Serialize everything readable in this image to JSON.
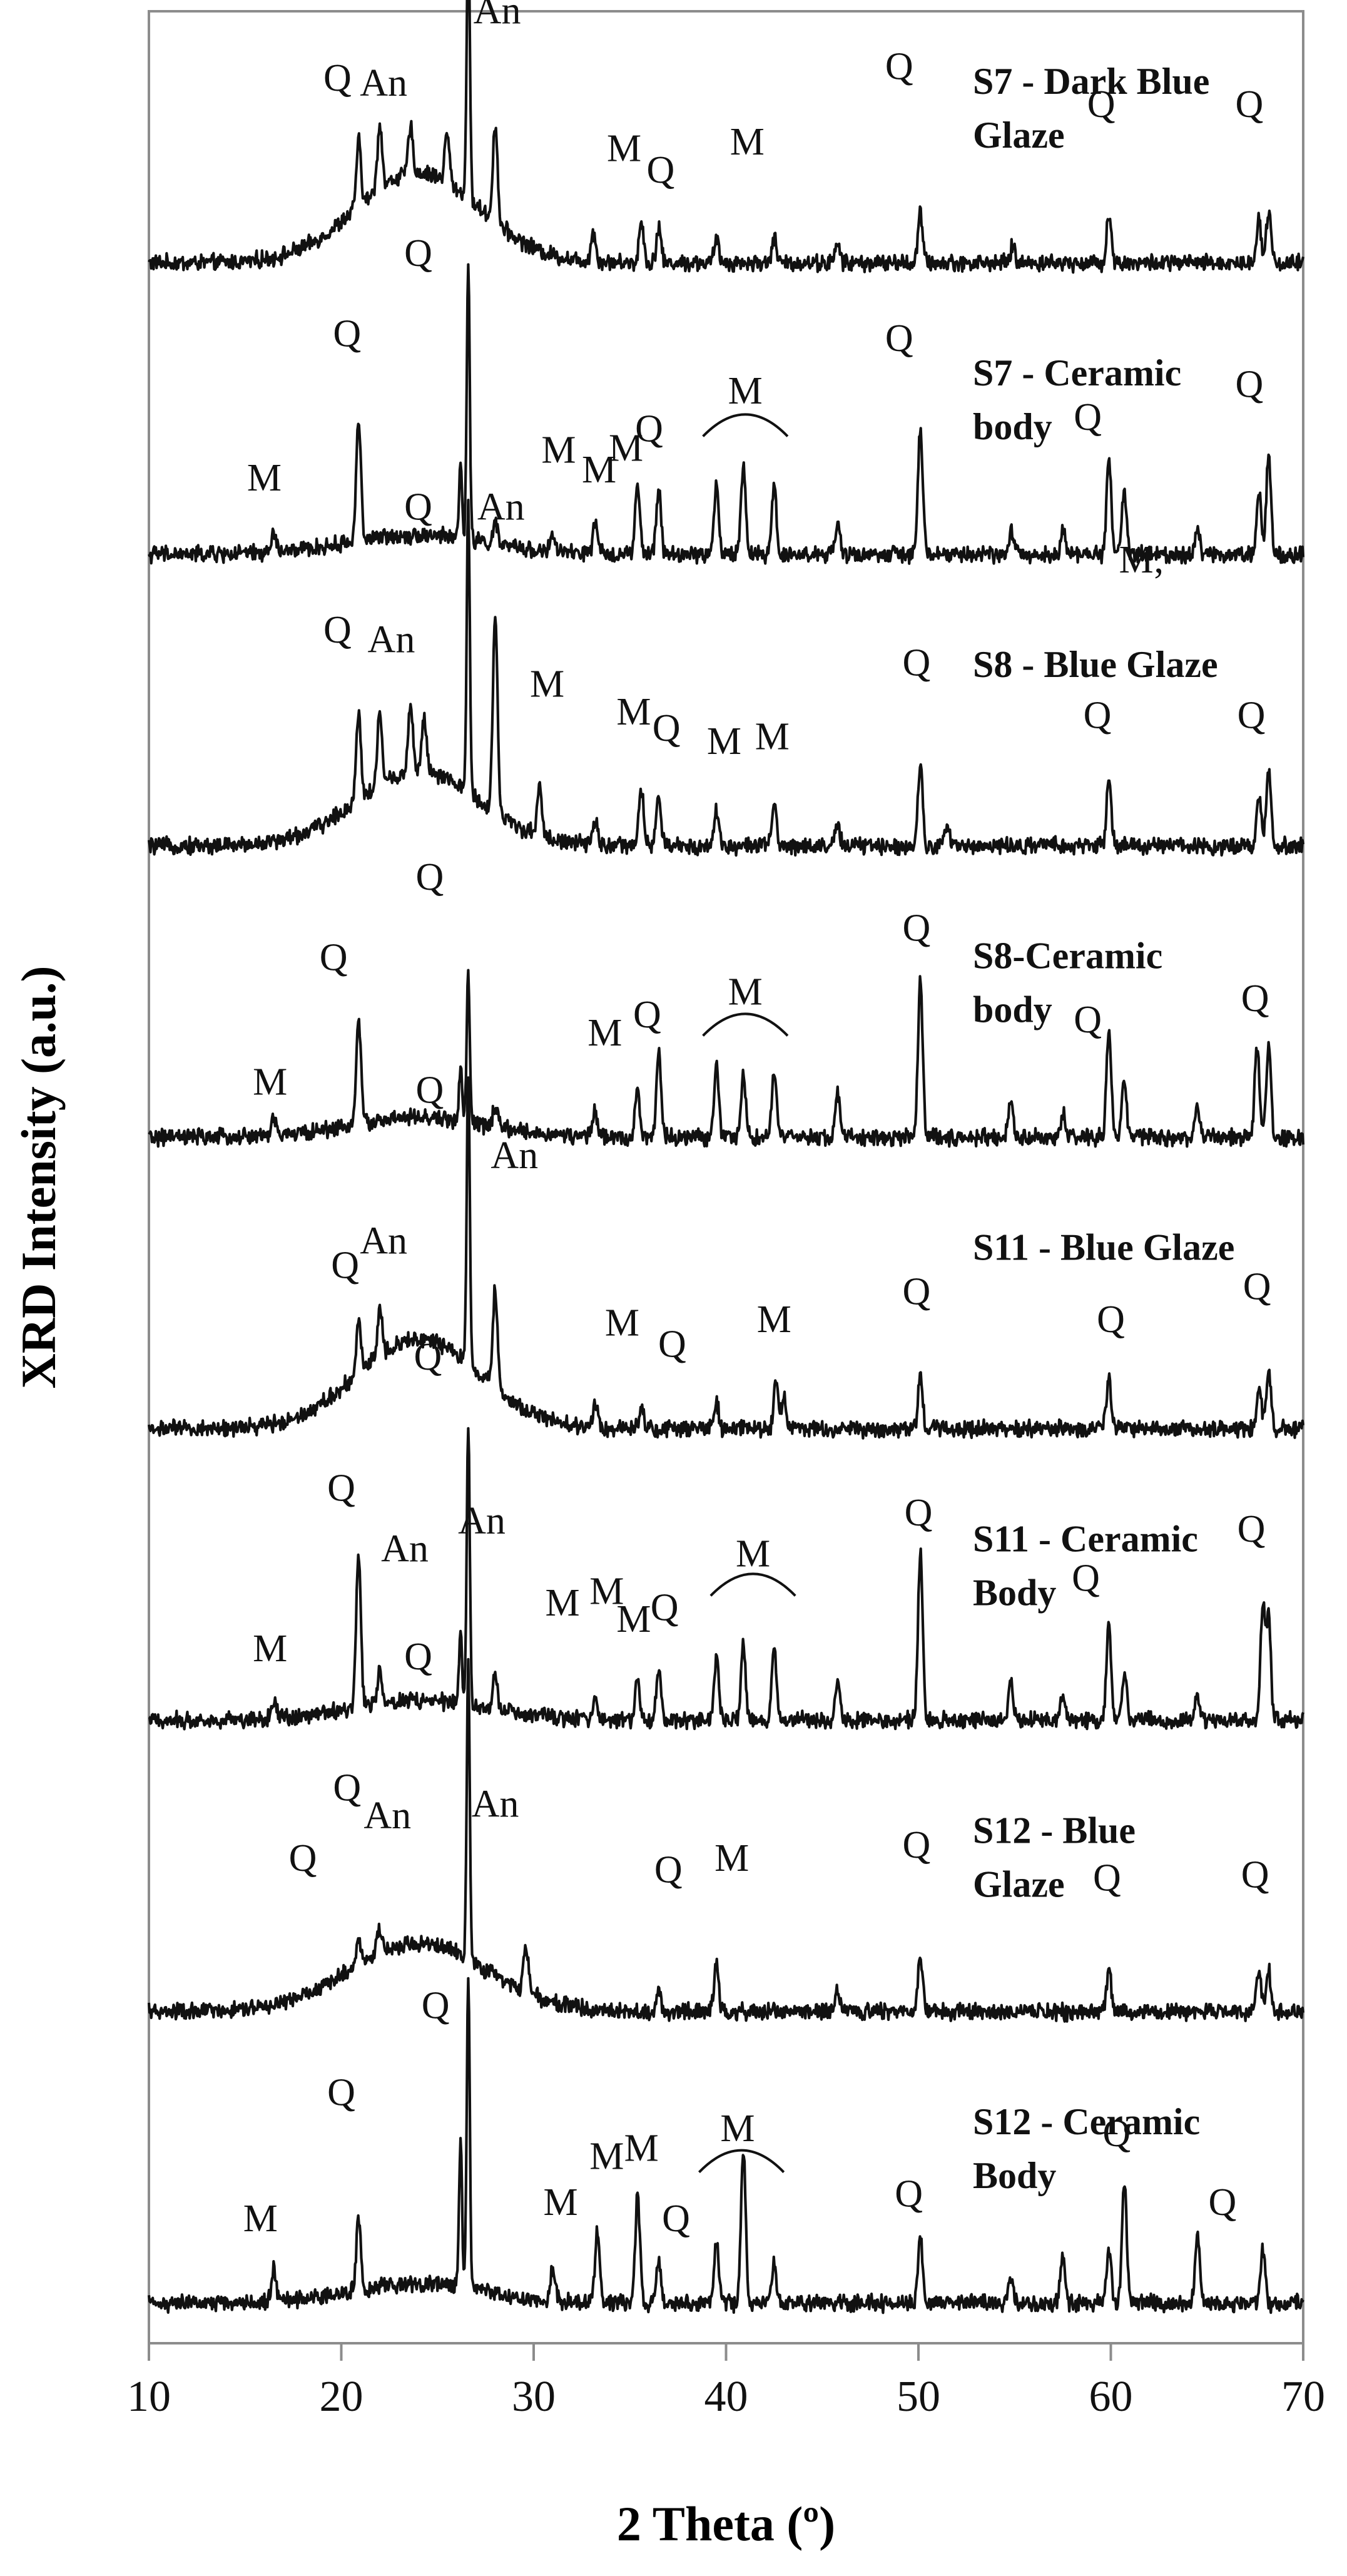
{
  "chart_data": {
    "type": "line",
    "title": "",
    "xlabel": "2 Theta (º)",
    "ylabel": "XRD Intensity (a.u.)",
    "xlim": [
      10,
      70
    ],
    "xticks": [
      10,
      20,
      30,
      40,
      50,
      60,
      70
    ],
    "grid": false,
    "legend": "none",
    "series": [
      {
        "name": "S7 - Dark Blue Glaze",
        "label_lines": [
          "S7   - Dark Blue",
          "Glaze"
        ],
        "base": 0,
        "baseline": 0.06,
        "amorphous": {
          "center": 24,
          "width": 4.5,
          "height": 0.55
        },
        "peaks": [
          [
            20.9,
            0.4
          ],
          [
            22.0,
            0.4
          ],
          [
            23.6,
            0.28
          ],
          [
            25.5,
            0.3
          ],
          [
            26.6,
            1.75
          ],
          [
            28.0,
            0.6
          ],
          [
            33.1,
            0.18
          ],
          [
            35.6,
            0.25
          ],
          [
            36.5,
            0.22
          ],
          [
            39.5,
            0.14
          ],
          [
            42.5,
            0.15
          ],
          [
            45.8,
            0.12
          ],
          [
            50.1,
            0.3
          ],
          [
            54.9,
            0.1
          ],
          [
            59.9,
            0.3
          ],
          [
            67.7,
            0.28
          ],
          [
            68.2,
            0.32
          ]
        ],
        "annotations": [
          {
            "text": "Q",
            "x": 24.0,
            "y": 1.78
          },
          {
            "text": "An",
            "x": 28.1,
            "y": 1.52
          },
          {
            "text": "Q",
            "x": 19.8,
            "y": 1.11
          },
          {
            "text": "An",
            "x": 22.2,
            "y": 1.08
          },
          {
            "text": "M",
            "x": 34.7,
            "y": 0.68
          },
          {
            "text": "Q",
            "x": 36.6,
            "y": 0.55
          },
          {
            "text": "M",
            "x": 41.1,
            "y": 0.72
          },
          {
            "text": "Q",
            "x": 49.0,
            "y": 1.18
          },
          {
            "text": "Q",
            "x": 59.5,
            "y": 0.95
          },
          {
            "text": "Q",
            "x": 67.2,
            "y": 0.95
          }
        ]
      },
      {
        "name": "S7 - Ceramic body",
        "label_lines": [
          "S7 - Ceramic",
          "body"
        ],
        "base": 1,
        "baseline": 0.06,
        "amorphous": {
          "center": 24,
          "width": 5,
          "height": 0.12
        },
        "peaks": [
          [
            16.5,
            0.12
          ],
          [
            20.9,
            0.75
          ],
          [
            26.2,
            0.45
          ],
          [
            26.6,
            1.65
          ],
          [
            28.0,
            0.12
          ],
          [
            31.0,
            0.1
          ],
          [
            33.2,
            0.18
          ],
          [
            35.4,
            0.42
          ],
          [
            36.5,
            0.4
          ],
          [
            39.5,
            0.42
          ],
          [
            40.9,
            0.55
          ],
          [
            42.5,
            0.42
          ],
          [
            45.8,
            0.18
          ],
          [
            50.1,
            0.78
          ],
          [
            54.8,
            0.15
          ],
          [
            57.5,
            0.15
          ],
          [
            59.9,
            0.6
          ],
          [
            60.7,
            0.4
          ],
          [
            64.5,
            0.18
          ],
          [
            67.7,
            0.4
          ],
          [
            68.2,
            0.6
          ]
        ],
        "annotations": [
          {
            "text": "Q",
            "x": 24.0,
            "y": 1.82
          },
          {
            "text": "Q",
            "x": 20.3,
            "y": 1.33
          },
          {
            "text": "M",
            "x": 16.0,
            "y": 0.45
          },
          {
            "text": "M",
            "x": 31.3,
            "y": 0.62
          },
          {
            "text": "M",
            "x": 33.4,
            "y": 0.5
          },
          {
            "text": "M",
            "x": 34.8,
            "y": 0.63
          },
          {
            "text": "Q",
            "x": 36.0,
            "y": 0.75
          },
          {
            "text": "M",
            "x": 41.0,
            "y": 0.98
          },
          {
            "text": "Q",
            "x": 49.0,
            "y": 1.3
          },
          {
            "text": "Q",
            "x": 58.8,
            "y": 0.82
          },
          {
            "text": "Q",
            "x": 67.2,
            "y": 1.02
          },
          {
            "text": "M;",
            "x": 61.6,
            "y": -0.05
          }
        ]
      },
      {
        "name": "S8 - Blue Glaze",
        "label_lines": [
          "S8 - Blue Glaze"
        ],
        "base": 2,
        "baseline": 0.06,
        "amorphous": {
          "center": 24,
          "width": 4.5,
          "height": 0.45
        },
        "peaks": [
          [
            20.9,
            0.55
          ],
          [
            22.0,
            0.45
          ],
          [
            23.6,
            0.42
          ],
          [
            24.3,
            0.35
          ],
          [
            26.6,
            1.8
          ],
          [
            28.0,
            1.2
          ],
          [
            30.3,
            0.32
          ],
          [
            33.2,
            0.15
          ],
          [
            35.6,
            0.35
          ],
          [
            36.5,
            0.3
          ],
          [
            39.5,
            0.22
          ],
          [
            42.5,
            0.25
          ],
          [
            45.8,
            0.12
          ],
          [
            50.1,
            0.5
          ],
          [
            51.5,
            0.12
          ],
          [
            59.9,
            0.42
          ],
          [
            67.7,
            0.3
          ],
          [
            68.2,
            0.45
          ]
        ],
        "annotations": [
          {
            "text": "Q",
            "x": 24.0,
            "y": 2.05
          },
          {
            "text": "An",
            "x": 28.3,
            "y": 2.05
          },
          {
            "text": "Q",
            "x": 19.8,
            "y": 1.3
          },
          {
            "text": "An",
            "x": 22.6,
            "y": 1.24
          },
          {
            "text": "M",
            "x": 30.7,
            "y": 0.97
          },
          {
            "text": "M",
            "x": 35.2,
            "y": 0.8
          },
          {
            "text": "Q",
            "x": 36.9,
            "y": 0.7
          },
          {
            "text": "M",
            "x": 39.9,
            "y": 0.62
          },
          {
            "text": "M",
            "x": 42.4,
            "y": 0.65
          },
          {
            "text": "Q",
            "x": 49.9,
            "y": 1.1
          },
          {
            "text": "Q",
            "x": 59.3,
            "y": 0.78
          },
          {
            "text": "Q",
            "x": 67.3,
            "y": 0.78
          }
        ]
      },
      {
        "name": "S8-Ceramic body",
        "label_lines": [
          "S8-Ceramic",
          "body"
        ],
        "base": 3,
        "baseline": 0.06,
        "amorphous": {
          "center": 24,
          "width": 5,
          "height": 0.12
        },
        "peaks": [
          [
            16.5,
            0.1
          ],
          [
            20.9,
            0.65
          ],
          [
            26.2,
            0.35
          ],
          [
            26.6,
            0.9
          ],
          [
            28.0,
            0.12
          ],
          [
            33.2,
            0.15
          ],
          [
            35.4,
            0.3
          ],
          [
            36.5,
            0.5
          ],
          [
            39.5,
            0.45
          ],
          [
            40.9,
            0.4
          ],
          [
            42.5,
            0.4
          ],
          [
            45.8,
            0.28
          ],
          [
            50.1,
            0.98
          ],
          [
            54.8,
            0.22
          ],
          [
            57.5,
            0.15
          ],
          [
            59.9,
            0.65
          ],
          [
            60.7,
            0.35
          ],
          [
            64.5,
            0.18
          ],
          [
            67.6,
            0.55
          ],
          [
            68.2,
            0.55
          ]
        ],
        "annotations": [
          {
            "text": "Q",
            "x": 24.6,
            "y": 1.57
          },
          {
            "text": "Q",
            "x": 19.6,
            "y": 1.08
          },
          {
            "text": "M",
            "x": 16.3,
            "y": 0.32
          },
          {
            "text": "M",
            "x": 33.7,
            "y": 0.62
          },
          {
            "text": "Q",
            "x": 35.9,
            "y": 0.73
          },
          {
            "text": "M",
            "x": 41.0,
            "y": 0.87
          },
          {
            "text": "Q",
            "x": 49.9,
            "y": 1.26
          },
          {
            "text": "Q",
            "x": 58.8,
            "y": 0.7
          },
          {
            "text": "Q",
            "x": 67.5,
            "y": 0.83
          }
        ]
      },
      {
        "name": "S11 - Blue Glaze",
        "label_lines": [
          "S11 - Blue Glaze"
        ],
        "base": 4,
        "baseline": 0.06,
        "amorphous": {
          "center": 24,
          "width": 4.5,
          "height": 0.55
        },
        "peaks": [
          [
            20.9,
            0.3
          ],
          [
            22.0,
            0.3
          ],
          [
            26.6,
            1.8
          ],
          [
            28.0,
            0.6
          ],
          [
            33.2,
            0.15
          ],
          [
            35.6,
            0.15
          ],
          [
            39.5,
            0.15
          ],
          [
            42.6,
            0.3
          ],
          [
            43.0,
            0.2
          ],
          [
            50.1,
            0.3
          ],
          [
            59.9,
            0.3
          ],
          [
            67.7,
            0.25
          ],
          [
            68.2,
            0.35
          ]
        ],
        "annotations": [
          {
            "text": "Q",
            "x": 24.6,
            "y": 2.05
          },
          {
            "text": "An",
            "x": 29.0,
            "y": 1.65
          },
          {
            "text": "An",
            "x": 22.2,
            "y": 1.13
          },
          {
            "text": "Q",
            "x": 20.2,
            "y": 0.98
          },
          {
            "text": "M",
            "x": 34.6,
            "y": 0.63
          },
          {
            "text": "Q",
            "x": 37.2,
            "y": 0.5
          },
          {
            "text": "M",
            "x": 42.5,
            "y": 0.65
          },
          {
            "text": "Q",
            "x": 49.9,
            "y": 0.82
          },
          {
            "text": "Q",
            "x": 60.0,
            "y": 0.65
          },
          {
            "text": "Q",
            "x": 67.6,
            "y": 0.85
          }
        ]
      },
      {
        "name": "S11 - Ceramic Body",
        "label_lines": [
          "S11 - Ceramic",
          "Body"
        ],
        "base": 5,
        "baseline": 0.06,
        "amorphous": {
          "center": 24,
          "width": 5,
          "height": 0.12
        },
        "peaks": [
          [
            16.5,
            0.12
          ],
          [
            20.9,
            0.95
          ],
          [
            22.0,
            0.2
          ],
          [
            26.2,
            0.45
          ],
          [
            26.6,
            1.7
          ],
          [
            28.0,
            0.2
          ],
          [
            33.2,
            0.15
          ],
          [
            35.4,
            0.25
          ],
          [
            36.5,
            0.3
          ],
          [
            39.5,
            0.4
          ],
          [
            40.9,
            0.45
          ],
          [
            42.5,
            0.45
          ],
          [
            45.8,
            0.25
          ],
          [
            50.1,
            1.05
          ],
          [
            54.8,
            0.25
          ],
          [
            57.5,
            0.15
          ],
          [
            59.9,
            0.6
          ],
          [
            60.7,
            0.3
          ],
          [
            64.5,
            0.15
          ],
          [
            67.9,
            0.68
          ],
          [
            68.2,
            0.6
          ]
        ],
        "annotations": [
          {
            "text": "Q",
            "x": 24.5,
            "y": 2.2
          },
          {
            "text": "Q",
            "x": 20.0,
            "y": 1.4
          },
          {
            "text": "An",
            "x": 23.3,
            "y": 1.03
          },
          {
            "text": "An",
            "x": 27.3,
            "y": 1.2
          },
          {
            "text": "M",
            "x": 16.3,
            "y": 0.42
          },
          {
            "text": "M",
            "x": 31.5,
            "y": 0.7
          },
          {
            "text": "M",
            "x": 33.8,
            "y": 0.77
          },
          {
            "text": "M",
            "x": 35.2,
            "y": 0.6
          },
          {
            "text": "Q",
            "x": 36.8,
            "y": 0.67
          },
          {
            "text": "M",
            "x": 41.4,
            "y": 1.0
          },
          {
            "text": "Q",
            "x": 50.0,
            "y": 1.25
          },
          {
            "text": "Q",
            "x": 58.7,
            "y": 0.85
          },
          {
            "text": "Q",
            "x": 67.3,
            "y": 1.15
          }
        ]
      },
      {
        "name": "S12 - Blue Glaze",
        "label_lines": [
          "S12 - Blue",
          "Glaze"
        ],
        "base": 6,
        "baseline": 0.06,
        "amorphous": {
          "center": 24,
          "width": 5,
          "height": 0.42
        },
        "peaks": [
          [
            20.9,
            0.15
          ],
          [
            22.0,
            0.15
          ],
          [
            26.6,
            1.8
          ],
          [
            29.6,
            0.3
          ],
          [
            36.5,
            0.12
          ],
          [
            39.5,
            0.3
          ],
          [
            45.8,
            0.12
          ],
          [
            50.1,
            0.35
          ],
          [
            59.9,
            0.25
          ],
          [
            67.7,
            0.25
          ],
          [
            68.2,
            0.25
          ]
        ],
        "annotations": [
          {
            "text": "Q",
            "x": 24.0,
            "y": 2.15
          },
          {
            "text": "Q",
            "x": 20.3,
            "y": 1.35
          },
          {
            "text": "An",
            "x": 22.4,
            "y": 1.18
          },
          {
            "text": "An",
            "x": 28.0,
            "y": 1.25
          },
          {
            "text": "Q",
            "x": 18.0,
            "y": 0.92
          },
          {
            "text": "Q",
            "x": 37.0,
            "y": 0.85
          },
          {
            "text": "M",
            "x": 40.3,
            "y": 0.92
          },
          {
            "text": "Q",
            "x": 49.9,
            "y": 1.0
          },
          {
            "text": "Q",
            "x": 59.8,
            "y": 0.8
          },
          {
            "text": "Q",
            "x": 67.5,
            "y": 0.82
          }
        ]
      },
      {
        "name": "S12 - Ceramic Body",
        "label_lines": [
          "S12 - Ceramic",
          "Body"
        ],
        "base": 7,
        "baseline": 0.06,
        "amorphous": {
          "center": 24,
          "width": 5,
          "height": 0.12
        },
        "peaks": [
          [
            16.5,
            0.2
          ],
          [
            20.9,
            0.42
          ],
          [
            26.2,
            0.9
          ],
          [
            26.6,
            1.9
          ],
          [
            31.0,
            0.2
          ],
          [
            33.3,
            0.42
          ],
          [
            35.4,
            0.65
          ],
          [
            36.5,
            0.28
          ],
          [
            39.5,
            0.38
          ],
          [
            40.9,
            0.95
          ],
          [
            42.5,
            0.25
          ],
          [
            50.1,
            0.4
          ],
          [
            54.8,
            0.15
          ],
          [
            57.5,
            0.3
          ],
          [
            59.9,
            0.32
          ],
          [
            60.7,
            0.75
          ],
          [
            64.5,
            0.42
          ],
          [
            67.9,
            0.32
          ]
        ],
        "annotations": [
          {
            "text": "Q",
            "x": 24.9,
            "y": 1.8
          },
          {
            "text": "Q",
            "x": 20.0,
            "y": 1.27
          },
          {
            "text": "M",
            "x": 15.8,
            "y": 0.5
          },
          {
            "text": "M",
            "x": 31.4,
            "y": 0.6
          },
          {
            "text": "M",
            "x": 33.8,
            "y": 0.88
          },
          {
            "text": "M",
            "x": 35.6,
            "y": 0.93
          },
          {
            "text": "Q",
            "x": 37.4,
            "y": 0.5
          },
          {
            "text": "M",
            "x": 40.6,
            "y": 1.05
          },
          {
            "text": "Q",
            "x": 49.5,
            "y": 0.65
          },
          {
            "text": "Q",
            "x": 60.3,
            "y": 1.02
          },
          {
            "text": "Q",
            "x": 65.8,
            "y": 0.6
          }
        ]
      }
    ]
  }
}
